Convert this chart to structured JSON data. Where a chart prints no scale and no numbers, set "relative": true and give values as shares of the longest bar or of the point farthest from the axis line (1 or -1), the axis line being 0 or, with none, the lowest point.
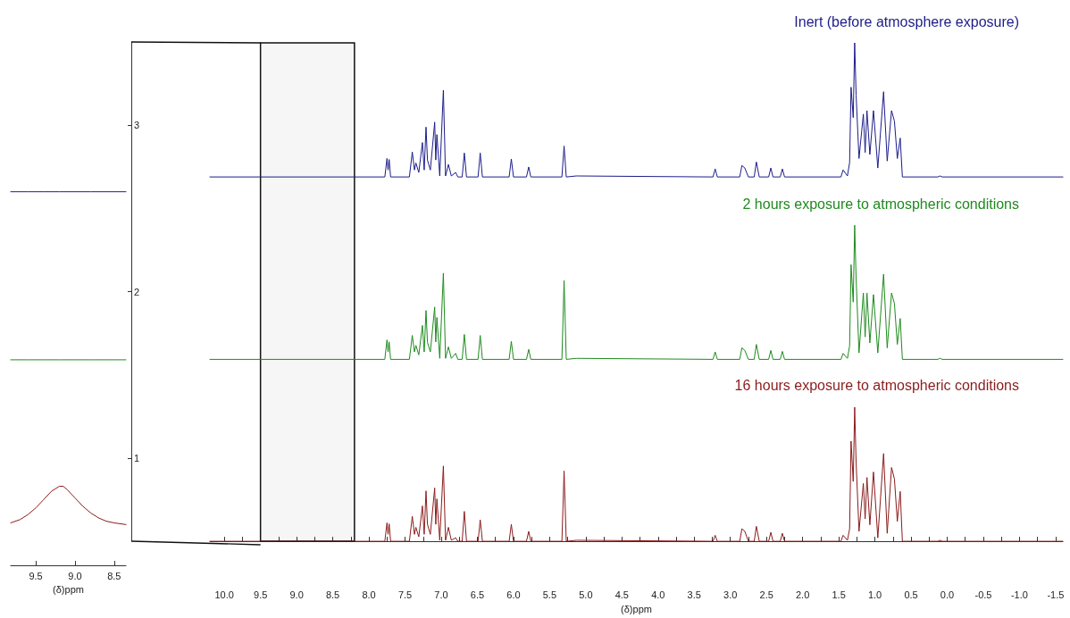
{
  "chart_data": [
    {
      "type": "line",
      "xlabel": "(δ)ppm",
      "xlim": [
        9.82,
        8.35
      ],
      "xticks": [
        9.5,
        {
          "value": 9,
          "label": "9.0"
        },
        8.5
      ],
      "ylim": [
        0.5,
        3.5
      ],
      "yticks": [
        1,
        2,
        3
      ],
      "grid": false,
      "marker": "none",
      "line_style": "solid",
      "series": [
        {
          "color": "#1c1c8a",
          "x": [
            9.82,
            9.6,
            9.4,
            9.2,
            9.0,
            8.8,
            8.6,
            8.35
          ],
          "values": [
            2.6,
            2.6,
            2.6,
            2.6,
            2.6,
            2.6,
            2.6,
            2.6
          ]
        },
        {
          "color": "#1f8a1f",
          "x": [
            9.82,
            9.6,
            9.4,
            9.2,
            9.0,
            8.8,
            8.6,
            8.35
          ],
          "values": [
            1.59,
            1.59,
            1.59,
            1.59,
            1.59,
            1.59,
            1.59,
            1.59
          ]
        },
        {
          "color": "#8a1c1c",
          "x": [
            9.82,
            9.7,
            9.6,
            9.5,
            9.4,
            9.3,
            9.2,
            9.15,
            9.1,
            9.0,
            8.9,
            8.8,
            8.7,
            8.6,
            8.5,
            8.35
          ],
          "values": [
            0.61,
            0.63,
            0.66,
            0.7,
            0.75,
            0.8,
            0.83,
            0.83,
            0.81,
            0.76,
            0.71,
            0.67,
            0.64,
            0.62,
            0.61,
            0.6
          ]
        }
      ]
    },
    {
      "type": "line",
      "relative": true,
      "xlabel": "(δ)ppm",
      "xlim": [
        10.2,
        -1.6
      ],
      "xticks": [
        {
          "value": 10,
          "label": "10.0"
        },
        {
          "value": 9.75,
          "label": null
        },
        9.5,
        {
          "value": 9.25,
          "label": null
        },
        {
          "value": 9,
          "label": "9.0"
        },
        {
          "value": 8.75,
          "label": null
        },
        8.5,
        {
          "value": 8.25,
          "label": null
        },
        {
          "value": 8,
          "label": "8.0"
        },
        {
          "value": 7.75,
          "label": null
        },
        7.5,
        {
          "value": 7.25,
          "label": null
        },
        {
          "value": 7,
          "label": "7.0"
        },
        {
          "value": 6.75,
          "label": null
        },
        6.5,
        {
          "value": 6.25,
          "label": null
        },
        {
          "value": 6,
          "label": "6.0"
        },
        {
          "value": 5.75,
          "label": null
        },
        5.5,
        {
          "value": 5.25,
          "label": null
        },
        {
          "value": 5,
          "label": "5.0"
        },
        {
          "value": 4.75,
          "label": null
        },
        4.5,
        {
          "value": 4.25,
          "label": null
        },
        {
          "value": 4,
          "label": "4.0"
        },
        {
          "value": 3.75,
          "label": null
        },
        3.5,
        {
          "value": 3.25,
          "label": null
        },
        {
          "value": 3,
          "label": "3.0"
        },
        {
          "value": 2.75,
          "label": null
        },
        2.5,
        {
          "value": 2.25,
          "label": null
        },
        {
          "value": 2,
          "label": "2.0"
        },
        {
          "value": 1.75,
          "label": null
        },
        1.5,
        {
          "value": 1.25,
          "label": null
        },
        {
          "value": 1,
          "label": "1.0"
        },
        {
          "value": 0.75,
          "label": null
        },
        0.5,
        {
          "value": 0.25,
          "label": null
        },
        {
          "value": 0,
          "label": "0.0"
        },
        {
          "value": -0.25,
          "label": null
        },
        -0.5,
        {
          "value": -0.75,
          "label": null
        },
        {
          "value": -1,
          "label": "-1.0"
        },
        {
          "value": -1.25,
          "label": null
        },
        -1.5
      ],
      "grid": false,
      "marker": "none",
      "line_style": "solid",
      "tick_labels": "x",
      "bands": [
        {
          "axis": "x",
          "from": 9.5,
          "to": 8.2,
          "color": "#111111"
        }
      ],
      "x": [
        10.2,
        7.78,
        7.75,
        7.735,
        7.72,
        7.7,
        7.44,
        7.4,
        7.37,
        7.35,
        7.31,
        7.26,
        7.235,
        7.21,
        7.19,
        7.15,
        7.09,
        7.075,
        7.06,
        7.02,
        6.97,
        6.94,
        6.9,
        6.86,
        6.8,
        6.77,
        6.71,
        6.68,
        6.65,
        6.49,
        6.46,
        6.43,
        6.06,
        6.03,
        6.0,
        5.82,
        5.79,
        5.76,
        5.33,
        5.3,
        5.27,
        5.13,
        3.24,
        3.21,
        3.18,
        2.87,
        2.84,
        2.8,
        2.75,
        2.67,
        2.64,
        2.6,
        2.47,
        2.44,
        2.41,
        2.31,
        2.28,
        2.25,
        1.47,
        1.44,
        1.38,
        1.35,
        1.33,
        1.3,
        1.28,
        1.26,
        1.22,
        1.16,
        1.135,
        1.11,
        1.07,
        1.02,
        0.96,
        0.88,
        0.83,
        0.77,
        0.73,
        0.69,
        0.65,
        0.62,
        0.13,
        0.1,
        0.07,
        -1.6
      ],
      "series": [
        {
          "name": "Inert (before atmosphere exposure)",
          "color": "#1c1c8a",
          "values": [
            0.731,
            0.731,
            0.768,
            0.745,
            0.766,
            0.731,
            0.731,
            0.781,
            0.745,
            0.759,
            0.74,
            0.8,
            0.745,
            0.831,
            0.765,
            0.745,
            0.841,
            0.765,
            0.816,
            0.733,
            0.905,
            0.733,
            0.756,
            0.733,
            0.74,
            0.731,
            0.731,
            0.779,
            0.731,
            0.731,
            0.779,
            0.731,
            0.731,
            0.767,
            0.731,
            0.731,
            0.751,
            0.731,
            0.731,
            0.793,
            0.731,
            0.733,
            0.731,
            0.747,
            0.731,
            0.731,
            0.754,
            0.749,
            0.731,
            0.731,
            0.761,
            0.731,
            0.731,
            0.749,
            0.731,
            0.731,
            0.747,
            0.731,
            0.731,
            0.745,
            0.733,
            0.76,
            0.911,
            0.85,
            1.0,
            0.895,
            0.768,
            0.857,
            0.78,
            0.864,
            0.776,
            0.864,
            0.749,
            0.902,
            0.763,
            0.864,
            0.843,
            0.768,
            0.809,
            0.731,
            0.731,
            0.733,
            0.731,
            0.731
          ]
        },
        {
          "name": "2 hours exposure to atmospheric conditions",
          "color": "#1f8a1f",
          "values": [
            0.365,
            0.365,
            0.404,
            0.38,
            0.4,
            0.365,
            0.365,
            0.413,
            0.38,
            0.393,
            0.374,
            0.433,
            0.38,
            0.463,
            0.399,
            0.38,
            0.47,
            0.4,
            0.449,
            0.367,
            0.538,
            0.367,
            0.39,
            0.367,
            0.377,
            0.365,
            0.365,
            0.415,
            0.365,
            0.365,
            0.413,
            0.365,
            0.365,
            0.401,
            0.365,
            0.365,
            0.385,
            0.365,
            0.365,
            0.523,
            0.365,
            0.367,
            0.365,
            0.38,
            0.365,
            0.365,
            0.388,
            0.383,
            0.365,
            0.365,
            0.395,
            0.365,
            0.365,
            0.383,
            0.365,
            0.365,
            0.381,
            0.365,
            0.365,
            0.377,
            0.367,
            0.392,
            0.555,
            0.48,
            0.634,
            0.527,
            0.378,
            0.498,
            0.41,
            0.498,
            0.398,
            0.495,
            0.378,
            0.536,
            0.388,
            0.498,
            0.477,
            0.395,
            0.447,
            0.365,
            0.365,
            0.367,
            0.365,
            0.365
          ]
        },
        {
          "name": "16 hours exposure to atmospheric conditions",
          "color": "#8a1c1c",
          "values": [
            0,
            0,
            0.037,
            0.014,
            0.035,
            0,
            0,
            0.05,
            0.014,
            0.028,
            0.009,
            0.071,
            0.014,
            0.101,
            0.034,
            0.014,
            0.107,
            0.034,
            0.085,
            0.002,
            0.151,
            0.002,
            0.028,
            0.002,
            0.007,
            0,
            0,
            0.06,
            0,
            0,
            0.043,
            0,
            0,
            0.034,
            0,
            0,
            0.02,
            0,
            0,
            0.141,
            0,
            0.002,
            0,
            0.012,
            0,
            0,
            0.025,
            0.02,
            0,
            0,
            0.03,
            0,
            0,
            0.018,
            0,
            0,
            0.016,
            0,
            0,
            0.012,
            0.002,
            0.025,
            0.201,
            0.12,
            0.269,
            0.158,
            0.02,
            0.116,
            0.045,
            0.128,
            0.033,
            0.139,
            0.007,
            0.176,
            0.016,
            0.148,
            0.125,
            0.04,
            0.1,
            0,
            0,
            0.002,
            0,
            0
          ]
        }
      ]
    }
  ]
}
